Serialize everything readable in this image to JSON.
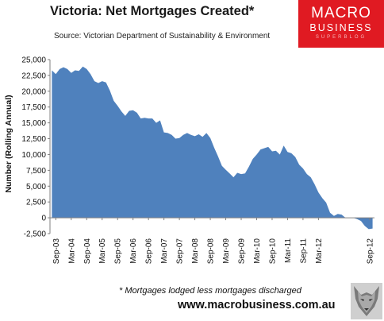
{
  "header": {
    "title": "Victoria: Net Mortgages Created*",
    "source": "Source: Victorian Department of Sustainability & Environment"
  },
  "logo": {
    "line1": "MACRO",
    "line2": "BUSINESS",
    "line3": "SUPERBLOG"
  },
  "footer": {
    "footnote": "* Mortgages lodged less mortgages discharged",
    "website": "www.macrobusiness.com.au"
  },
  "colors": {
    "area": "#4f81bd",
    "logo_bg": "#e01a22",
    "axis": "#808080"
  },
  "icons": {
    "logo_mascot": "wolf-icon"
  },
  "chart_data": {
    "type": "area",
    "ylabel": "Number (Rolling Annual)",
    "xlabel": "",
    "title": "",
    "ylim": [
      -2500,
      25000
    ],
    "yticks": [
      -2500,
      0,
      2500,
      5000,
      7500,
      10000,
      12500,
      15000,
      17500,
      20000,
      22500,
      25000
    ],
    "ytick_labels": [
      "-2,500",
      "0",
      "2,500",
      "5,000",
      "7,500",
      "10,000",
      "12,500",
      "15,000",
      "17,500",
      "20,000",
      "22,500",
      "25,000"
    ],
    "xtick_labels": [
      "Sep-03",
      "Mar-04",
      "Sep-04",
      "Mar-05",
      "Sep-05",
      "Mar-06",
      "Sep-06",
      "Mar-07",
      "Sep-07",
      "Mar-08",
      "Sep-08",
      "Mar-09",
      "Sep-09",
      "Mar-10",
      "Sep-10",
      "Mar-11",
      "Sep-11",
      "Mar-12",
      "Sep-12"
    ],
    "grid": false,
    "legend": "none",
    "series": [
      {
        "values": [
          23300,
          22700,
          23500,
          23800,
          23500,
          22900,
          23300,
          23200,
          23900,
          23500,
          22700,
          21600,
          21300,
          21600,
          21400,
          20100,
          18500,
          17700,
          16800,
          16100,
          16900,
          17000,
          16600,
          15700,
          15800,
          15700,
          15700,
          15000,
          15400,
          13500,
          13400,
          13100,
          12500,
          12600,
          13100,
          13400,
          13100,
          12900,
          13200,
          12800,
          13400,
          12600,
          11100,
          9700,
          8200,
          7600,
          7000,
          6400,
          7100,
          6900,
          7000,
          8100,
          9300,
          10000,
          10800,
          11000,
          11200,
          10500,
          10600,
          10000,
          11400,
          10400,
          10200,
          9600,
          8400,
          7800,
          6900,
          6400,
          5300,
          4000,
          3100,
          2400,
          800,
          300,
          600,
          500,
          0,
          0,
          0,
          -200,
          -500,
          -1300,
          -1800,
          -1700
        ]
      }
    ]
  }
}
